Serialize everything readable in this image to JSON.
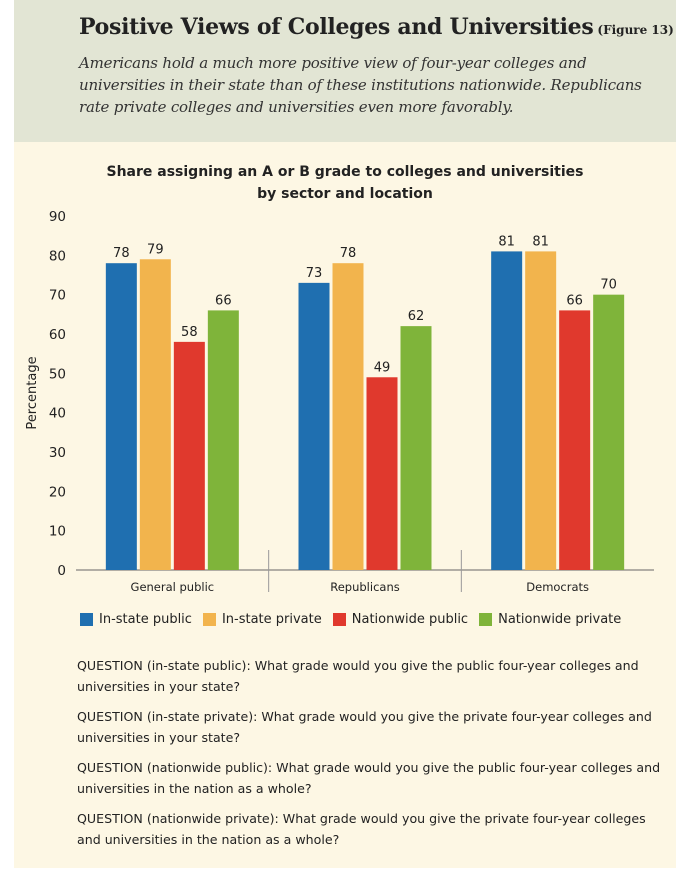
{
  "header": {
    "title": "Positive Views of Colleges and Universities",
    "figure_label": "(Figure 13)",
    "subtitle": "Americans hold a much more positive view of four-year colleges and universities in their state than of these institutions nationwide. Republicans rate private colleges and universities even more favorably."
  },
  "chart_data": {
    "type": "bar",
    "title_lines": [
      "Share assigning an A or B grade to colleges and universities",
      "by sector and location"
    ],
    "categories": [
      "General public",
      "Republicans",
      "Democrats"
    ],
    "series": [
      {
        "name": "In-state public",
        "color": "#1f6fb0",
        "values": [
          78,
          73,
          81
        ]
      },
      {
        "name": "In-state private",
        "color": "#f2b44d",
        "values": [
          79,
          78,
          81
        ]
      },
      {
        "name": "Nationwide public",
        "color": "#e0392d",
        "values": [
          58,
          49,
          66
        ]
      },
      {
        "name": "Nationwide private",
        "color": "#7fb43a",
        "values": [
          66,
          62,
          70
        ]
      }
    ],
    "ylabel": "Percentage",
    "ylim": [
      0,
      90
    ],
    "yticks": [
      0,
      10,
      20,
      30,
      40,
      50,
      60,
      70,
      80,
      90
    ],
    "grid": false,
    "legend": "bottom"
  },
  "questions": [
    "QUESTION (in-state public): What grade would you give the public four-year colleges and universities in your state?",
    "QUESTION (in-state private): What grade would you give the private four-year colleges and universities in your state?",
    "QUESTION (nationwide public): What grade would you give the public four-year colleges and universities in the nation as a whole?",
    "QUESTION (nationwide private): What grade would you give the private four-year colleges and universities in the nation as a whole?"
  ]
}
